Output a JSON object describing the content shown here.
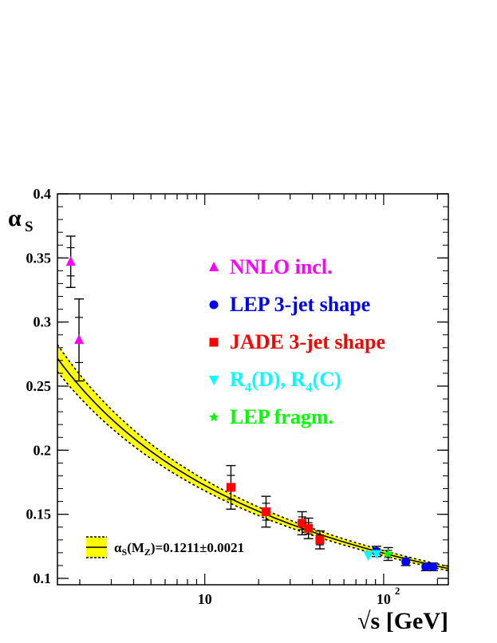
{
  "chart_data": {
    "type": "scatter",
    "title": "",
    "ylabel_main": "α",
    "ylabel_sub": "S",
    "xlabel": "√s [GeV]",
    "xscale": "log",
    "xlim": [
      1.5,
      230
    ],
    "ylim": [
      0.095,
      0.4
    ],
    "y_ticks": [
      "0.1",
      "0.15",
      "0.2",
      "0.25",
      "0.3",
      "0.35",
      "0.4"
    ],
    "x_ticks": [
      {
        "value": 10,
        "label": "10",
        "sup": ""
      },
      {
        "value": 100,
        "label": "10",
        "sup": "2"
      }
    ],
    "band": {
      "label": "α",
      "label_sub": "S",
      "label_paren_main": "(M",
      "label_paren_sub": "Z",
      "label_rest": ")=0.1211±0.0021",
      "color": "#ffff00",
      "alphaMZ": 0.1211,
      "error": 0.0021
    },
    "series": [
      {
        "name": "NNLO incl.",
        "marker": "triangle-up",
        "color": "#ff00ff",
        "points": [
          {
            "x": 1.78,
            "y": 0.347,
            "err": 0.02
          },
          {
            "x": 1.98,
            "y": 0.286,
            "err": 0.032
          }
        ]
      },
      {
        "name": "LEP 3-jet shape",
        "marker": "circle",
        "color": "#0000ff",
        "points": [
          {
            "x": 91.2,
            "y": 0.121,
            "err": 0.004
          },
          {
            "x": 133,
            "y": 0.113,
            "err": 0.003
          },
          {
            "x": 172,
            "y": 0.109,
            "err": 0.003
          },
          {
            "x": 189,
            "y": 0.109,
            "err": 0.003
          }
        ]
      },
      {
        "name": "JADE 3-jet shape",
        "marker": "square",
        "color": "#ff0000",
        "points": [
          {
            "x": 14,
            "y": 0.171,
            "err": 0.017
          },
          {
            "x": 22,
            "y": 0.152,
            "err": 0.012
          },
          {
            "x": 35,
            "y": 0.143,
            "err": 0.009
          },
          {
            "x": 38,
            "y": 0.139,
            "err": 0.008
          },
          {
            "x": 44,
            "y": 0.13,
            "err": 0.007
          }
        ]
      },
      {
        "name": "R",
        "name_parts": [
          "R",
          "4",
          "(D), R",
          "4",
          "(C)"
        ],
        "marker": "triangle-down",
        "color": "#00ffff",
        "points": [
          {
            "x": 82,
            "y": 0.118,
            "err": 0.0
          },
          {
            "x": 91.2,
            "y": 0.119,
            "err": 0.0
          }
        ]
      },
      {
        "name": "LEP fragm.",
        "marker": "star",
        "color": "#00ff00",
        "points": [
          {
            "x": 106,
            "y": 0.119,
            "err": 0.005
          }
        ]
      }
    ]
  }
}
